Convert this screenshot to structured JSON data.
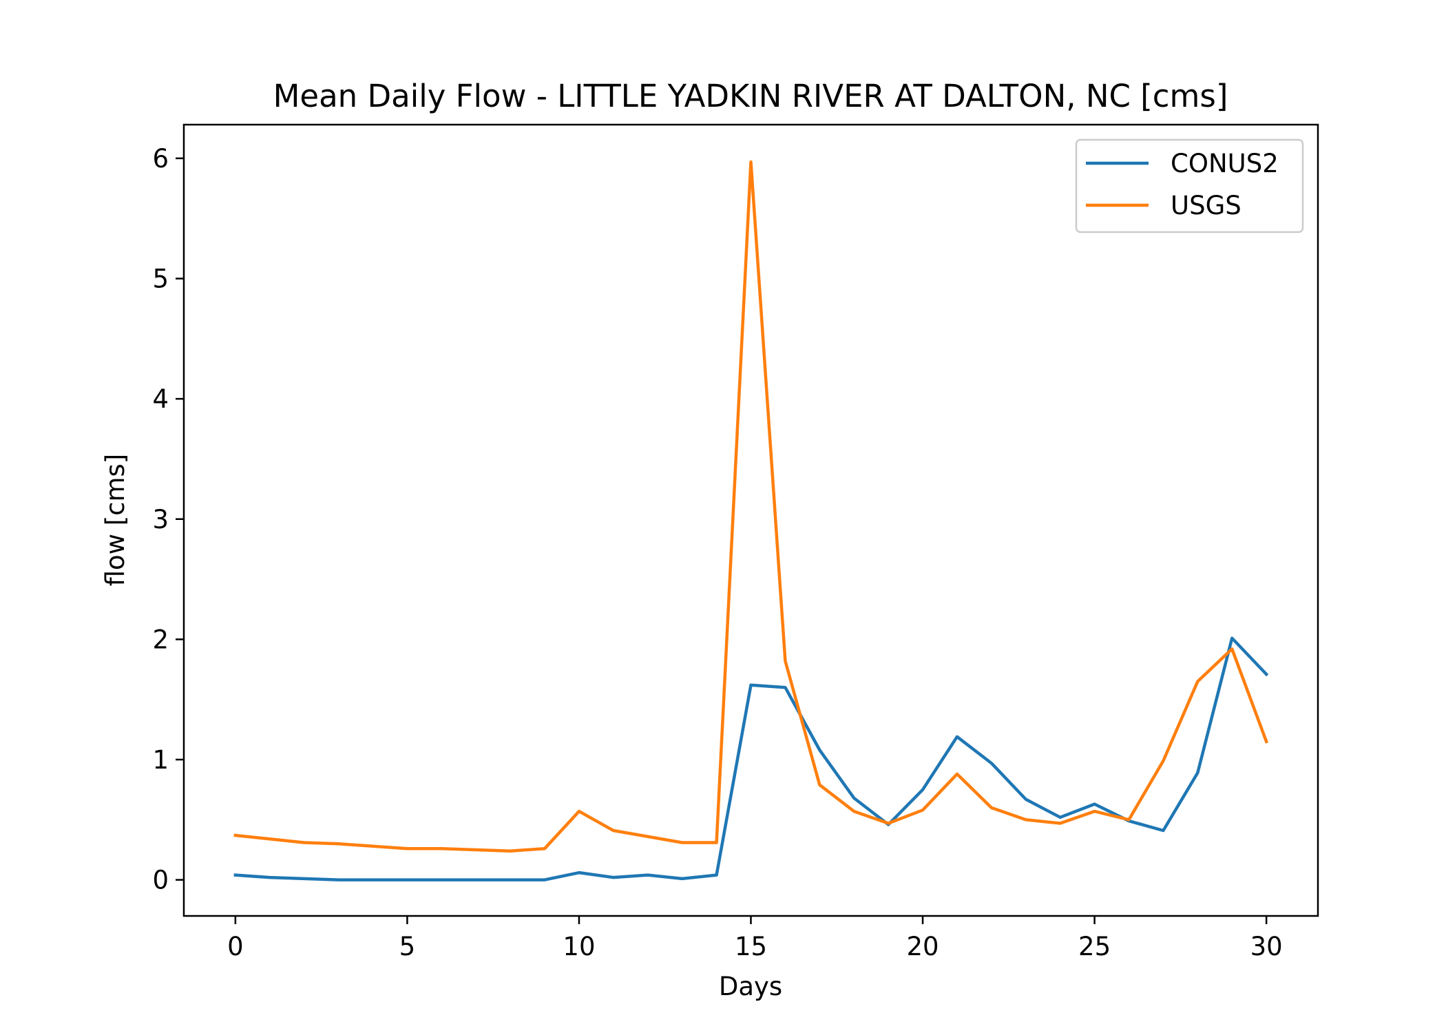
{
  "chart_data": {
    "type": "line",
    "title": "Mean Daily Flow - LITTLE YADKIN RIVER AT DALTON, NC [cms]",
    "xlabel": "Days",
    "ylabel": "flow [cms]",
    "xlim": [
      -1.5,
      31.5
    ],
    "ylim": [
      -0.3,
      6.28
    ],
    "xticks": [
      0,
      5,
      10,
      15,
      20,
      25,
      30
    ],
    "xtick_labels": [
      "0",
      "5",
      "10",
      "15",
      "20",
      "25",
      "30"
    ],
    "yticks": [
      0,
      1,
      2,
      3,
      4,
      5,
      6
    ],
    "ytick_labels": [
      "0",
      "1",
      "2",
      "3",
      "4",
      "5",
      "6"
    ],
    "grid": false,
    "legend_position": "top-right",
    "x": [
      0,
      1,
      2,
      3,
      4,
      5,
      6,
      7,
      8,
      9,
      10,
      11,
      12,
      13,
      14,
      15,
      16,
      17,
      18,
      19,
      20,
      21,
      22,
      23,
      24,
      25,
      26,
      27,
      28,
      29,
      30
    ],
    "series": [
      {
        "name": "CONUS2",
        "color": "#1f77b4",
        "values": [
          0.04,
          0.02,
          0.01,
          0.0,
          0.0,
          0.0,
          0.0,
          0.0,
          0.0,
          0.0,
          0.06,
          0.02,
          0.04,
          0.01,
          0.04,
          1.62,
          1.6,
          1.08,
          0.68,
          0.46,
          0.75,
          1.19,
          0.97,
          0.67,
          0.52,
          0.63,
          0.49,
          0.41,
          0.89,
          2.01,
          1.71
        ]
      },
      {
        "name": "USGS",
        "color": "#ff7f0e",
        "values": [
          0.37,
          0.34,
          0.31,
          0.3,
          0.28,
          0.26,
          0.26,
          0.25,
          0.24,
          0.26,
          0.57,
          0.41,
          0.36,
          0.31,
          0.31,
          5.97,
          1.82,
          0.79,
          0.57,
          0.47,
          0.58,
          0.88,
          0.6,
          0.5,
          0.47,
          0.57,
          0.5,
          0.99,
          1.65,
          1.92,
          1.15
        ]
      }
    ]
  }
}
